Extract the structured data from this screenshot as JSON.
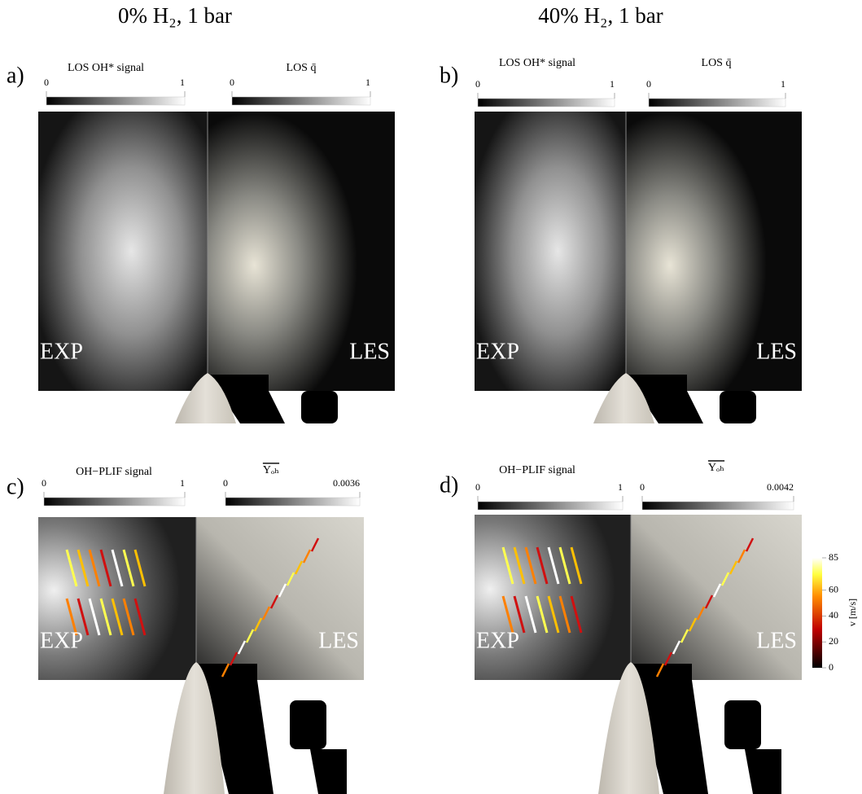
{
  "columns": [
    {
      "title": "0% H₂, 1 bar"
    },
    {
      "title": "40% H₂, 1 bar"
    }
  ],
  "panels": [
    {
      "label": "a)",
      "left_colorbar": {
        "label": "LOS OH* signal",
        "ticks": [
          0,
          1
        ]
      },
      "right_colorbar": {
        "label": "LOS q̄",
        "ticks": [
          0,
          1
        ]
      },
      "left_tag": "EXP",
      "right_tag": "LES"
    },
    {
      "label": "b)",
      "left_colorbar": {
        "label": "LOS OH* signal",
        "ticks": [
          0,
          1
        ]
      },
      "right_colorbar": {
        "label": "LOS q̄",
        "ticks": [
          0,
          1
        ]
      },
      "left_tag": "EXP",
      "right_tag": "LES"
    },
    {
      "label": "c)",
      "left_colorbar": {
        "label": "OH−PLIF signal",
        "ticks": [
          0,
          1
        ]
      },
      "right_colorbar": {
        "label": "Yₒₕ",
        "ticks": [
          0,
          0.0036
        ]
      },
      "left_tag": "EXP",
      "right_tag": "LES"
    },
    {
      "label": "d)",
      "left_colorbar": {
        "label": "OH−PLIF signal",
        "ticks": [
          0,
          1
        ]
      },
      "right_colorbar": {
        "label": "Yₒₕ",
        "ticks": [
          0,
          0.0042
        ]
      },
      "left_tag": "EXP",
      "right_tag": "LES"
    }
  ],
  "velocity_colorbar": {
    "label": "v [m/s]",
    "ticks": [
      85,
      60,
      40,
      20,
      0
    ]
  }
}
